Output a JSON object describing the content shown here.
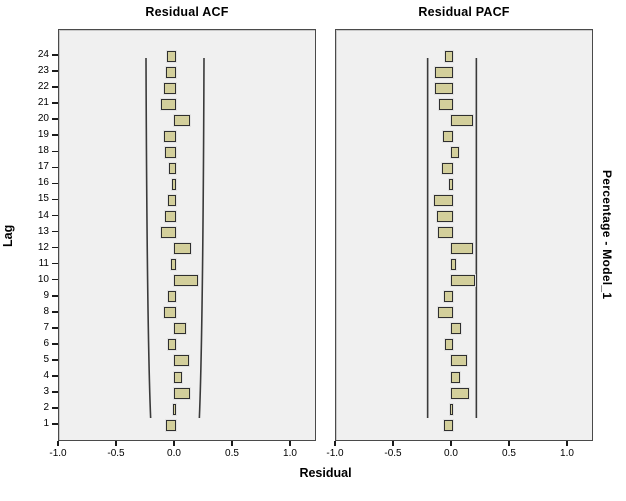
{
  "figure": {
    "titles": {
      "acf": "Residual ACF",
      "pacf": "Residual PACF"
    },
    "y_axis_title": "Lag",
    "x_axis_title": "Residual",
    "right_label": "Percentage - Model_1",
    "x_tick_labels": [
      "-1.0",
      "-0.5",
      "0.0",
      "0.5",
      "1.0"
    ],
    "colors": {
      "plot_background": "#f0f0f0",
      "frame_border": "#4a4a4a",
      "bar_fill": "#d3cf9b",
      "bar_border": "#2f2f2f",
      "bar_halo": "#e2e2e2",
      "ci_line": "#3a3a3a",
      "text": "#000000"
    }
  },
  "chart_data": [
    {
      "id": "acf",
      "type": "bar",
      "orientation": "horizontal",
      "title": "Residual ACF",
      "xlabel": "Residual",
      "ylabel": "Lag",
      "xlim": [
        -1.0,
        1.24
      ],
      "x_ticks": [
        -1.0,
        -0.5,
        0.0,
        0.5,
        1.0
      ],
      "lags": [
        1,
        2,
        3,
        4,
        5,
        6,
        7,
        8,
        9,
        10,
        11,
        12,
        13,
        14,
        15,
        16,
        17,
        18,
        19,
        20,
        21,
        22,
        23,
        24
      ],
      "values": [
        -0.065,
        -0.01,
        0.12,
        0.05,
        0.11,
        -0.05,
        0.09,
        -0.09,
        -0.055,
        0.19,
        -0.03,
        0.13,
        -0.11,
        -0.075,
        -0.05,
        -0.015,
        -0.045,
        -0.08,
        -0.09,
        0.12,
        -0.11,
        -0.085,
        -0.07,
        -0.06
      ],
      "confidence_limits": {
        "shape": "flared",
        "limit_at_lag1": 0.21,
        "limit_at_lag24": 0.25
      }
    },
    {
      "id": "pacf",
      "type": "bar",
      "orientation": "horizontal",
      "title": "Residual PACF",
      "xlabel": "Residual",
      "ylabel": "Lag",
      "xlim": [
        -1.0,
        1.24
      ],
      "x_ticks": [
        -1.0,
        -0.5,
        0.0,
        0.5,
        1.0
      ],
      "lags": [
        1,
        2,
        3,
        4,
        5,
        6,
        7,
        8,
        9,
        10,
        11,
        12,
        13,
        14,
        15,
        16,
        17,
        18,
        19,
        20,
        21,
        22,
        23,
        24
      ],
      "values": [
        -0.06,
        -0.01,
        0.14,
        0.06,
        0.12,
        -0.05,
        0.07,
        -0.11,
        -0.06,
        0.19,
        0.03,
        0.17,
        -0.115,
        -0.12,
        -0.15,
        -0.015,
        -0.08,
        0.05,
        -0.07,
        0.17,
        -0.1,
        -0.14,
        -0.14,
        -0.055
      ],
      "confidence_limits": {
        "shape": "straight",
        "limit": 0.21
      }
    }
  ]
}
